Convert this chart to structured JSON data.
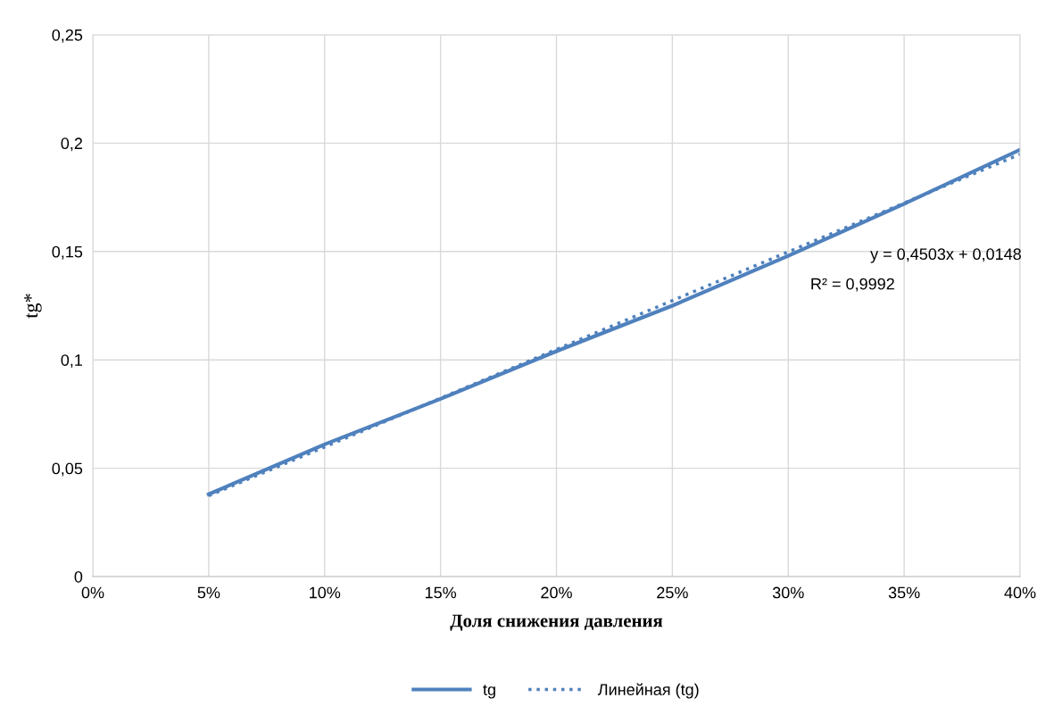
{
  "chart_data": {
    "type": "line",
    "xlabel": "Доля снижения давления",
    "ylabel": "tg*",
    "series": [
      {
        "name": "tg",
        "color": "#4f81bd",
        "line_style": "solid",
        "x": [
          0.05,
          0.1,
          0.15,
          0.2,
          0.25,
          0.3,
          0.35,
          0.4
        ],
        "values": [
          0.038,
          0.061,
          0.082,
          0.104,
          0.125,
          0.148,
          0.172,
          0.197
        ]
      },
      {
        "name": "Линейная (tg)",
        "color": "#4f81bd",
        "line_style": "dotted",
        "x": [
          0.05,
          0.4
        ],
        "values": [
          0.0373,
          0.1949
        ]
      }
    ],
    "annotations": [
      "y = 0,4503x + 0,0148",
      "R² = 0,9992"
    ],
    "xlim": [
      0,
      0.4
    ],
    "ylim": [
      0,
      0.25
    ],
    "xticks": [
      {
        "value": 0,
        "label": "0%"
      },
      {
        "value": 0.05,
        "label": "5%"
      },
      {
        "value": 0.1,
        "label": "10%"
      },
      {
        "value": 0.15,
        "label": "15%"
      },
      {
        "value": 0.2,
        "label": "20%"
      },
      {
        "value": 0.25,
        "label": "25%"
      },
      {
        "value": 0.3,
        "label": "30%"
      },
      {
        "value": 0.35,
        "label": "35%"
      },
      {
        "value": 0.4,
        "label": "40%"
      }
    ],
    "yticks": [
      0,
      {
        "value": 0.05,
        "label": "0,05"
      },
      {
        "value": 0.1,
        "label": "0,1"
      },
      {
        "value": 0.15,
        "label": "0,15"
      },
      {
        "value": 0.2,
        "label": "0,2"
      },
      {
        "value": 0.25,
        "label": "0,25"
      }
    ],
    "grid": true,
    "legend": "bottom",
    "marker": "none"
  }
}
